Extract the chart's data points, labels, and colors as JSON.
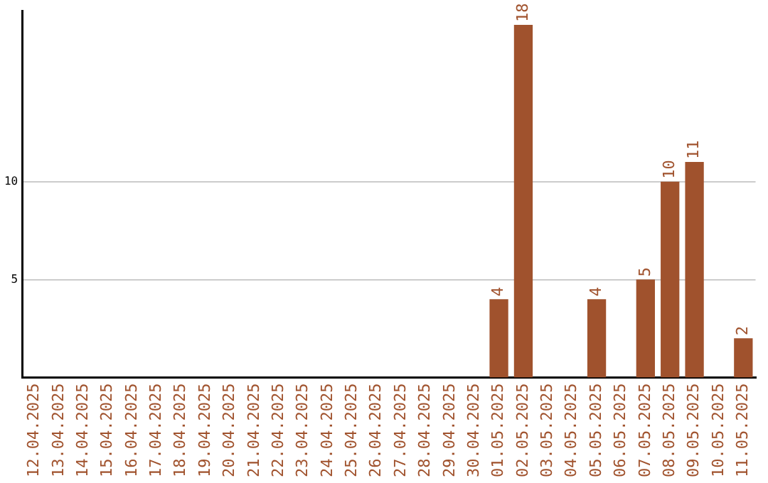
{
  "chart_data": {
    "type": "bar",
    "categories": [
      "12.04.2025",
      "13.04.2025",
      "14.04.2025",
      "15.04.2025",
      "16.04.2025",
      "17.04.2025",
      "18.04.2025",
      "19.04.2025",
      "20.04.2025",
      "21.04.2025",
      "22.04.2025",
      "23.04.2025",
      "24.04.2025",
      "25.04.2025",
      "26.04.2025",
      "27.04.2025",
      "28.04.2025",
      "29.04.2025",
      "30.04.2025",
      "01.05.2025",
      "02.05.2025",
      "03.05.2025",
      "04.05.2025",
      "05.05.2025",
      "06.05.2025",
      "07.05.2025",
      "08.05.2025",
      "09.05.2025",
      "10.05.2025",
      "11.05.2025"
    ],
    "values": [
      0,
      0,
      0,
      0,
      0,
      0,
      0,
      0,
      0,
      0,
      0,
      0,
      0,
      0,
      0,
      0,
      0,
      0,
      0,
      4,
      18,
      0,
      0,
      4,
      0,
      5,
      10,
      11,
      0,
      2
    ],
    "value_labels": [
      null,
      null,
      null,
      null,
      null,
      null,
      null,
      null,
      null,
      null,
      null,
      null,
      null,
      null,
      null,
      null,
      null,
      null,
      null,
      "4",
      "18",
      null,
      null,
      "4",
      null,
      "5",
      "10",
      "11",
      null,
      "2"
    ],
    "color": "#a0522d",
    "ylim": [
      0,
      18.7
    ],
    "yticks": [
      5,
      10
    ],
    "grid": "y",
    "legend": false
  }
}
